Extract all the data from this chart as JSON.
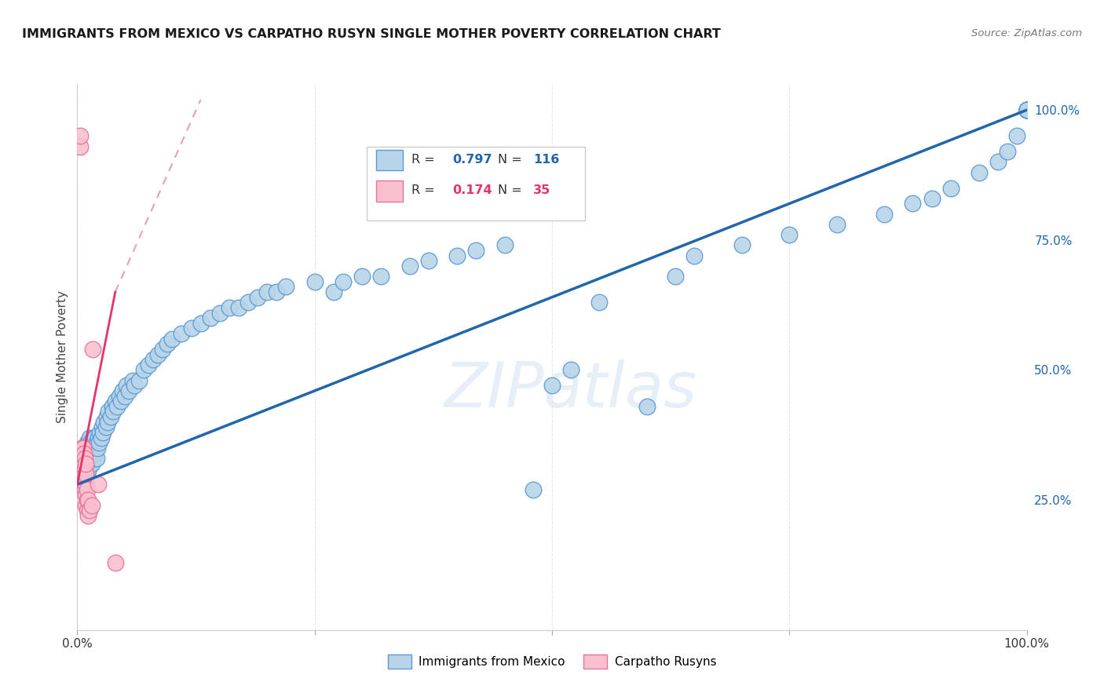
{
  "title": "IMMIGRANTS FROM MEXICO VS CARPATHO RUSYN SINGLE MOTHER POVERTY CORRELATION CHART",
  "source": "Source: ZipAtlas.com",
  "ylabel": "Single Mother Poverty",
  "blue_color": "#b8d4e8",
  "blue_edge": "#5b9bd5",
  "pink_color": "#f9c0cf",
  "pink_edge": "#e8749a",
  "line_blue": "#2166ac",
  "line_pink": "#e8326a",
  "watermark": "ZIPatlas",
  "legend_r1": "0.797",
  "legend_n1": "116",
  "legend_r2": "0.174",
  "legend_n2": "35",
  "blue_x": [
    0.005,
    0.006,
    0.007,
    0.008,
    0.008,
    0.009,
    0.009,
    0.01,
    0.01,
    0.01,
    0.01,
    0.01,
    0.01,
    0.011,
    0.011,
    0.012,
    0.012,
    0.012,
    0.013,
    0.013,
    0.013,
    0.014,
    0.014,
    0.015,
    0.015,
    0.016,
    0.016,
    0.017,
    0.017,
    0.018,
    0.018,
    0.019,
    0.019,
    0.02,
    0.02,
    0.021,
    0.022,
    0.023,
    0.024,
    0.025,
    0.026,
    0.027,
    0.028,
    0.03,
    0.031,
    0.032,
    0.033,
    0.035,
    0.037,
    0.038,
    0.04,
    0.042,
    0.044,
    0.046,
    0.048,
    0.05,
    0.052,
    0.054,
    0.058,
    0.06,
    0.065,
    0.07,
    0.075,
    0.08,
    0.085,
    0.09,
    0.095,
    0.1,
    0.11,
    0.12,
    0.13,
    0.14,
    0.15,
    0.16,
    0.17,
    0.18,
    0.19,
    0.2,
    0.21,
    0.22,
    0.25,
    0.27,
    0.28,
    0.3,
    0.32,
    0.35,
    0.37,
    0.4,
    0.42,
    0.45,
    0.48,
    0.5,
    0.52,
    0.55,
    0.6,
    0.63,
    0.65,
    0.7,
    0.75,
    0.8,
    0.85,
    0.88,
    0.9,
    0.92,
    0.95,
    0.97,
    0.98,
    0.99,
    1.0,
    1.0,
    1.0,
    1.0,
    1.0,
    1.0,
    1.0,
    1.0
  ],
  "blue_y": [
    0.32,
    0.33,
    0.34,
    0.33,
    0.35,
    0.31,
    0.34,
    0.3,
    0.32,
    0.33,
    0.34,
    0.35,
    0.36,
    0.32,
    0.35,
    0.31,
    0.33,
    0.36,
    0.32,
    0.34,
    0.37,
    0.33,
    0.36,
    0.32,
    0.35,
    0.33,
    0.36,
    0.34,
    0.37,
    0.33,
    0.36,
    0.34,
    0.37,
    0.33,
    0.36,
    0.35,
    0.37,
    0.36,
    0.38,
    0.37,
    0.39,
    0.38,
    0.4,
    0.39,
    0.41,
    0.4,
    0.42,
    0.41,
    0.43,
    0.42,
    0.44,
    0.43,
    0.45,
    0.44,
    0.46,
    0.45,
    0.47,
    0.46,
    0.48,
    0.47,
    0.48,
    0.5,
    0.51,
    0.52,
    0.53,
    0.54,
    0.55,
    0.56,
    0.57,
    0.58,
    0.59,
    0.6,
    0.61,
    0.62,
    0.62,
    0.63,
    0.64,
    0.65,
    0.65,
    0.66,
    0.67,
    0.65,
    0.67,
    0.68,
    0.68,
    0.7,
    0.71,
    0.72,
    0.73,
    0.74,
    0.27,
    0.47,
    0.5,
    0.63,
    0.43,
    0.68,
    0.72,
    0.74,
    0.76,
    0.78,
    0.8,
    0.82,
    0.83,
    0.85,
    0.88,
    0.9,
    0.92,
    0.95,
    1.0,
    1.0,
    1.0,
    1.0,
    1.0,
    1.0,
    1.0,
    1.0
  ],
  "pink_x": [
    0.003,
    0.003,
    0.004,
    0.004,
    0.005,
    0.005,
    0.005,
    0.005,
    0.006,
    0.006,
    0.006,
    0.006,
    0.007,
    0.007,
    0.007,
    0.007,
    0.008,
    0.008,
    0.008,
    0.008,
    0.009,
    0.009,
    0.009,
    0.009,
    0.009,
    0.01,
    0.01,
    0.01,
    0.011,
    0.011,
    0.013,
    0.015,
    0.016,
    0.022,
    0.04
  ],
  "pink_y": [
    0.93,
    0.95,
    0.32,
    0.34,
    0.32,
    0.34,
    0.33,
    0.35,
    0.32,
    0.34,
    0.33,
    0.35,
    0.28,
    0.3,
    0.32,
    0.34,
    0.27,
    0.29,
    0.31,
    0.33,
    0.24,
    0.26,
    0.28,
    0.3,
    0.32,
    0.23,
    0.25,
    0.27,
    0.22,
    0.25,
    0.23,
    0.24,
    0.54,
    0.28,
    0.13
  ]
}
